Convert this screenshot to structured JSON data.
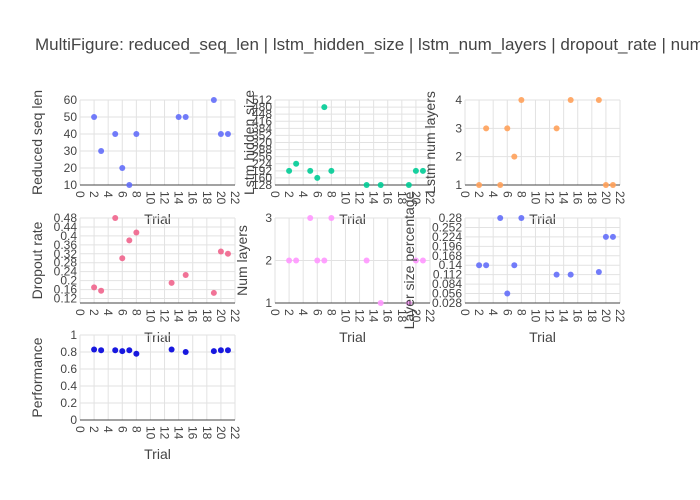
{
  "figure": {
    "title": "MultiFigure: reduced_seq_len | lstm_hidden_size | lstm_num_layers | dropout_rate | num"
  },
  "chart_data": [
    {
      "type": "scatter",
      "title": "",
      "xlabel": "Trial",
      "ylabel": "Reduced seq len",
      "color": "#636efa",
      "xlim": [
        0,
        22
      ],
      "ylim": [
        10,
        60
      ],
      "xticks": [
        0,
        2,
        4,
        6,
        8,
        10,
        12,
        14,
        16,
        18,
        20,
        22
      ],
      "yticks": [
        10,
        20,
        30,
        40,
        50,
        60
      ],
      "x": [
        2,
        3,
        5,
        6,
        7,
        8,
        14,
        15,
        19,
        20,
        21
      ],
      "y": [
        50,
        30,
        40,
        20,
        10,
        40,
        50,
        50,
        60,
        40,
        40
      ]
    },
    {
      "type": "scatter",
      "title": "",
      "xlabel": "Trial",
      "ylabel": "Lstm hidden size",
      "color": "#00cc96",
      "xlim": [
        0,
        22
      ],
      "ylim": [
        128,
        512
      ],
      "xticks": [
        0,
        2,
        4,
        6,
        8,
        10,
        12,
        14,
        16,
        18,
        20,
        22
      ],
      "yticks": [
        128,
        160,
        192,
        224,
        256,
        288,
        320,
        352,
        384,
        416,
        448,
        480,
        512
      ],
      "x": [
        2,
        3,
        5,
        6,
        7,
        8,
        13,
        15,
        19,
        20,
        21
      ],
      "y": [
        192,
        224,
        192,
        160,
        480,
        192,
        128,
        128,
        128,
        192,
        192
      ]
    },
    {
      "type": "scatter",
      "title": "",
      "xlabel": "Trial",
      "ylabel": "Lstm num layers",
      "color": "#ffa15a",
      "xlim": [
        0,
        22
      ],
      "ylim": [
        1,
        4
      ],
      "xticks": [
        0,
        2,
        4,
        6,
        8,
        10,
        12,
        14,
        16,
        18,
        20,
        22
      ],
      "yticks": [
        1,
        2,
        3,
        4
      ],
      "x": [
        2,
        3,
        5,
        6,
        7,
        8,
        13,
        15,
        19,
        20,
        21
      ],
      "y": [
        1,
        3,
        1,
        3,
        2,
        4,
        3,
        4,
        4,
        1,
        1
      ]
    },
    {
      "type": "scatter",
      "title": "",
      "xlabel": "Trial",
      "ylabel": "Dropout rate",
      "color": "#ef553b",
      "point_color": "#f0648c",
      "xlim": [
        0,
        22
      ],
      "ylim": [
        0.1,
        0.48
      ],
      "xticks": [
        0,
        2,
        4,
        6,
        8,
        10,
        12,
        14,
        16,
        18,
        20,
        22
      ],
      "yticks": [
        0.12,
        0.16,
        0.2,
        0.24,
        0.28,
        0.32,
        0.36,
        0.4,
        0.44,
        0.48
      ],
      "ytick_labels": [
        "0.12",
        "0.16",
        "0.2",
        "0.24",
        "0.28",
        "0.32",
        "0.36",
        "0.4",
        "0.44",
        "0.48"
      ],
      "x": [
        2,
        3,
        5,
        6,
        7,
        8,
        13,
        15,
        19,
        20,
        21
      ],
      "y": [
        0.17,
        0.155,
        0.48,
        0.3,
        0.38,
        0.415,
        0.19,
        0.225,
        0.145,
        0.33,
        0.32
      ]
    },
    {
      "type": "scatter",
      "title": "",
      "xlabel": "Trial",
      "ylabel": "Num layers",
      "color": "#ff97ff",
      "xlim": [
        0,
        22
      ],
      "ylim": [
        1,
        3
      ],
      "xticks": [
        0,
        2,
        4,
        6,
        8,
        10,
        12,
        14,
        16,
        18,
        20,
        22
      ],
      "yticks": [
        1,
        2,
        3
      ],
      "x": [
        2,
        3,
        5,
        6,
        7,
        8,
        13,
        15,
        19,
        20,
        21
      ],
      "y": [
        2,
        2,
        3,
        2,
        2,
        3,
        2,
        1,
        1,
        2,
        2
      ]
    },
    {
      "type": "scatter",
      "title": "",
      "xlabel": "Trial",
      "ylabel": "Layer size percentage",
      "color": "#636efa",
      "xlim": [
        0,
        22
      ],
      "ylim": [
        0.028,
        0.28
      ],
      "xticks": [
        0,
        2,
        4,
        6,
        8,
        10,
        12,
        14,
        16,
        18,
        20,
        22
      ],
      "yticks": [
        0.028,
        0.056,
        0.084,
        0.112,
        0.14,
        0.168,
        0.196,
        0.224,
        0.252,
        0.28
      ],
      "ytick_labels": [
        "0.028",
        "0.056",
        "0.084",
        "0.112",
        "0.14",
        "0.168",
        "0.196",
        "0.224",
        "0.252",
        "0.28"
      ],
      "x": [
        2,
        3,
        5,
        6,
        7,
        8,
        13,
        15,
        19,
        20,
        21
      ],
      "y": [
        0.14,
        0.14,
        0.28,
        0.056,
        0.14,
        0.28,
        0.112,
        0.112,
        0.12,
        0.224,
        0.224
      ]
    },
    {
      "type": "scatter",
      "title": "",
      "xlabel": "Trial",
      "ylabel": "Performance",
      "color": "#0000dd",
      "xlim": [
        0,
        22
      ],
      "ylim": [
        0,
        1
      ],
      "xticks": [
        0,
        2,
        4,
        6,
        8,
        10,
        12,
        14,
        16,
        18,
        20,
        22
      ],
      "yticks": [
        0,
        0.2,
        0.4,
        0.6,
        0.8,
        1
      ],
      "ytick_labels": [
        "0",
        "0.2",
        "0.4",
        "0.6",
        "0.8",
        "1"
      ],
      "x": [
        2,
        3,
        5,
        6,
        7,
        8,
        13,
        15,
        19,
        20,
        21
      ],
      "y": [
        0.83,
        0.82,
        0.82,
        0.81,
        0.82,
        0.78,
        0.83,
        0.8,
        0.81,
        0.82,
        0.82
      ]
    }
  ]
}
